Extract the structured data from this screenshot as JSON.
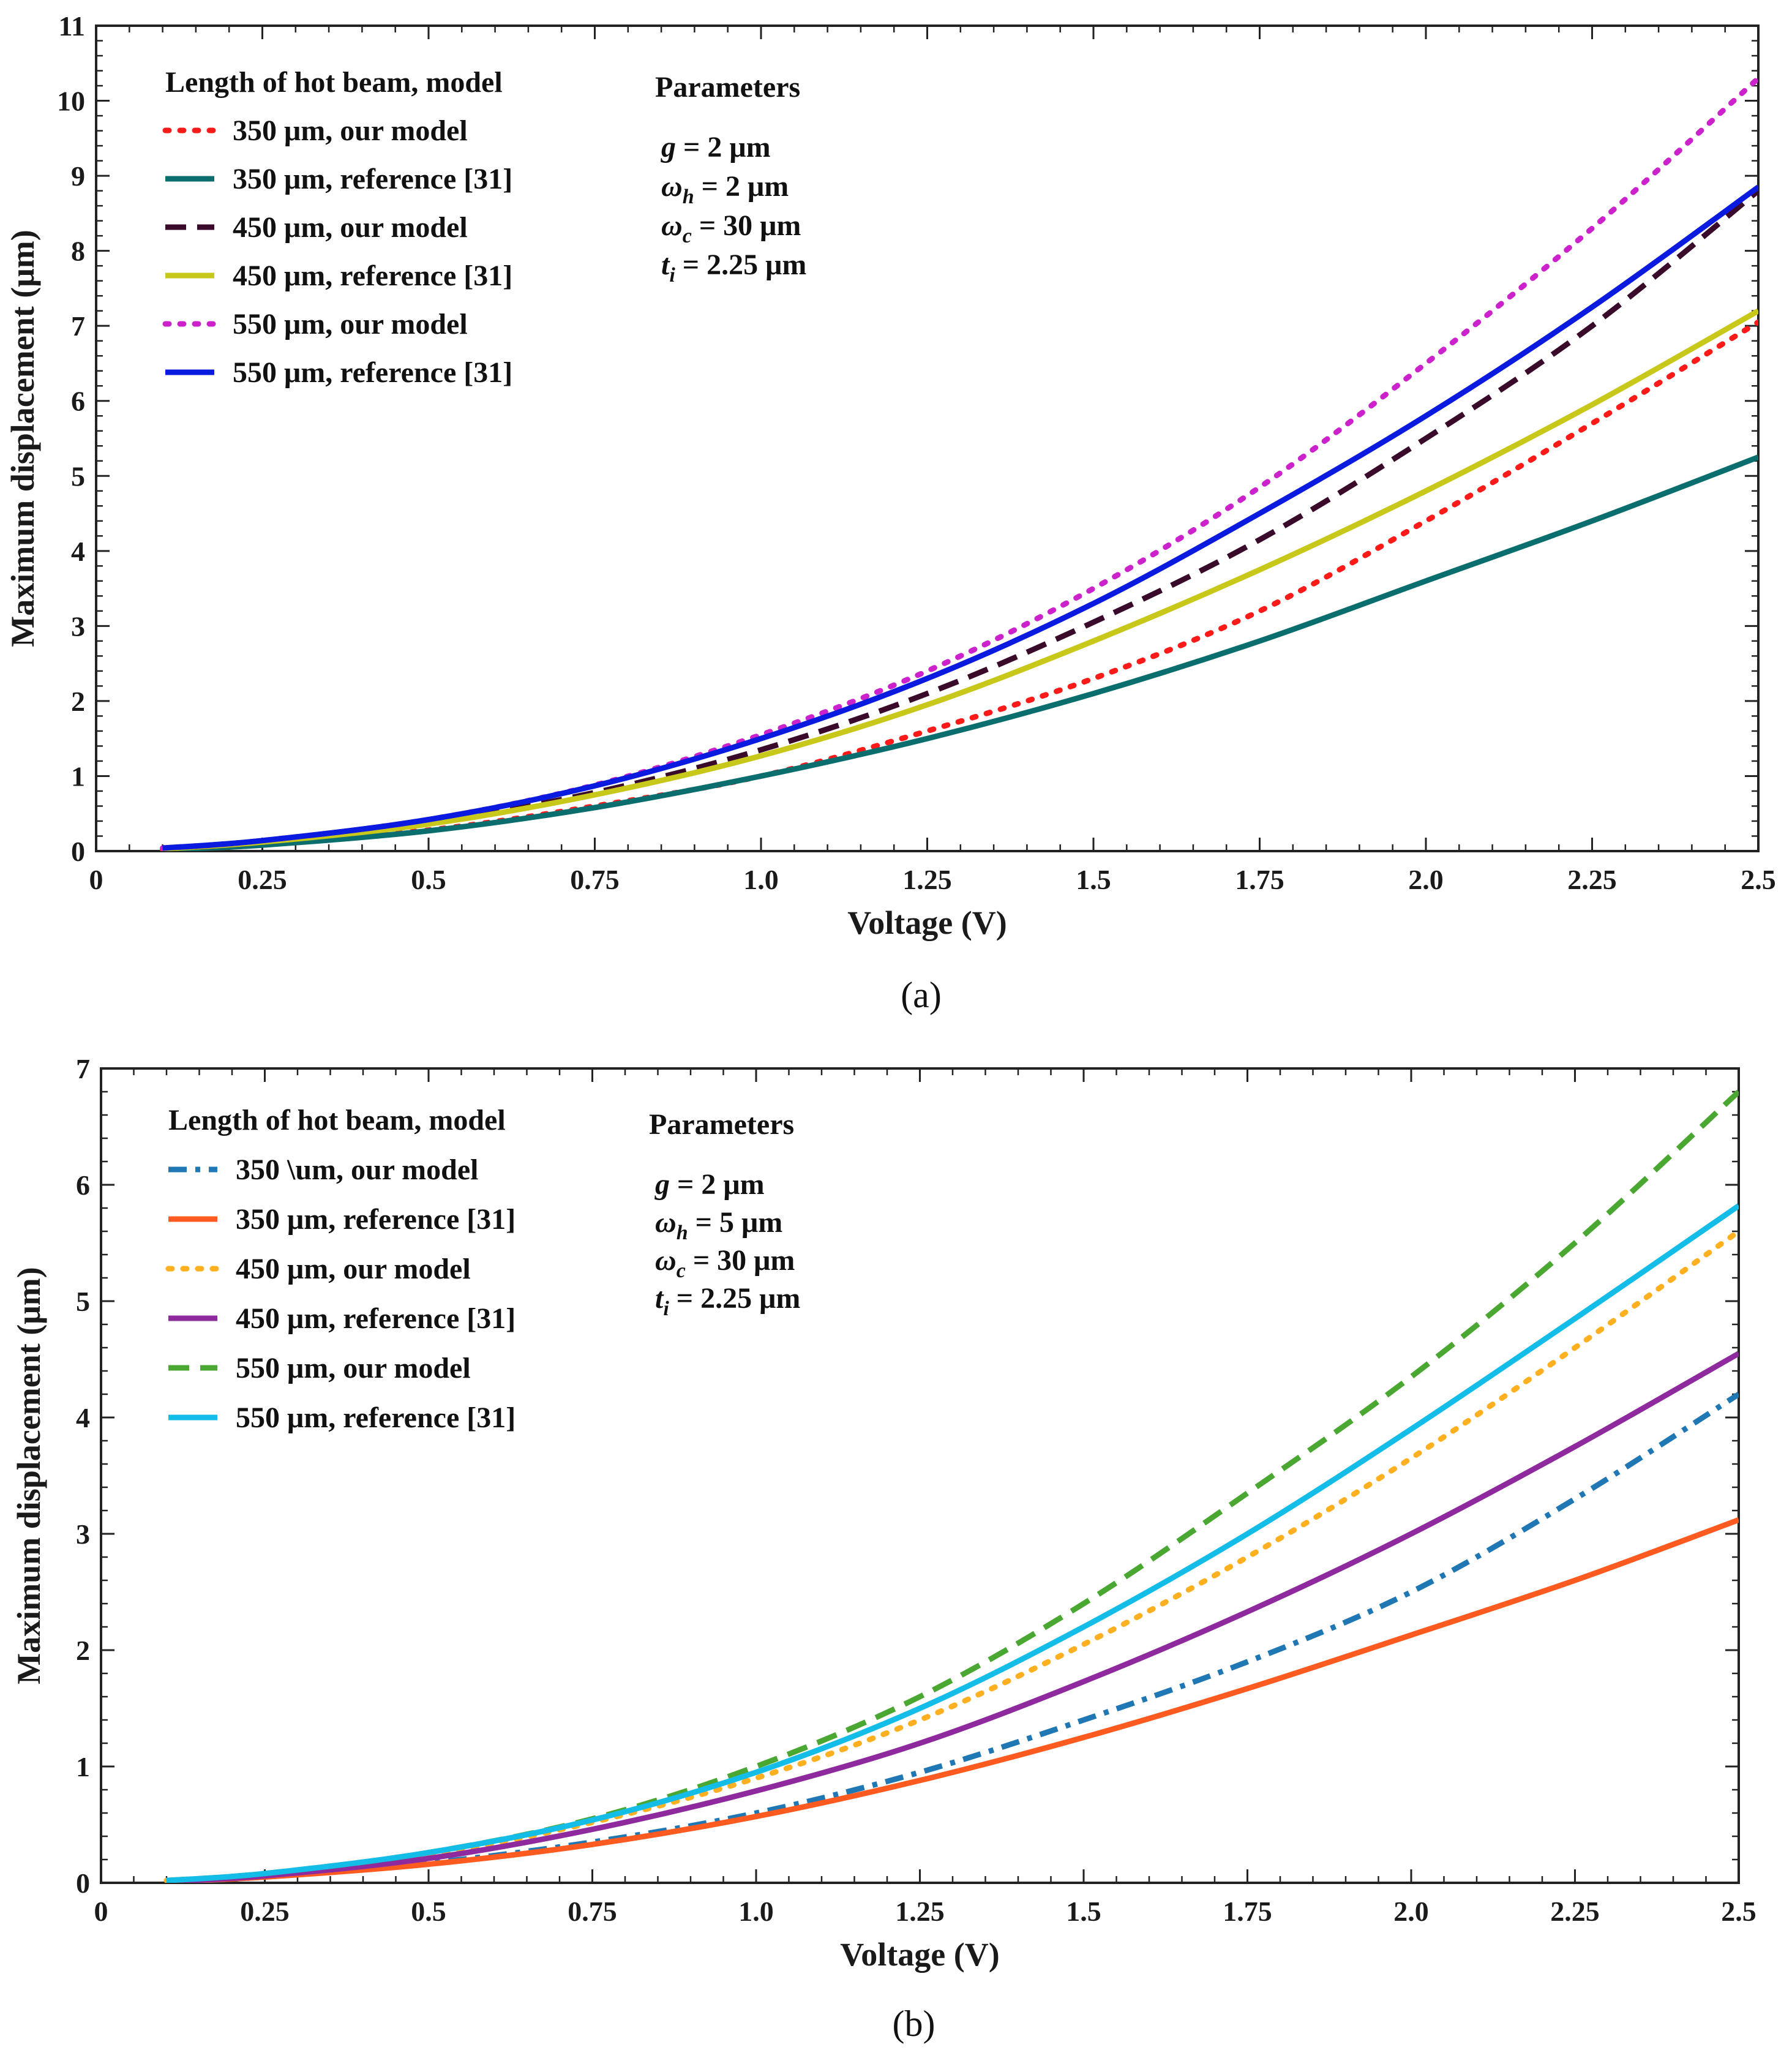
{
  "chart_data": [
    {
      "type": "line",
      "panel_label": "(a)",
      "xlabel": "Voltage (V)",
      "ylabel": "Maximum displacement (μm)",
      "xlim": [
        0,
        2.5
      ],
      "ylim": [
        0,
        11
      ],
      "xticks": [
        "0",
        "0.25",
        "0.5",
        "0.75",
        "1.0",
        "1.25",
        "1.5",
        "1.75",
        "2.0",
        "2.25",
        "2.5"
      ],
      "yticks": [
        "0",
        "1",
        "2",
        "3",
        "4",
        "5",
        "6",
        "7",
        "8",
        "9",
        "10",
        "11"
      ],
      "legend_title": "Length of hot beam, model",
      "legend_placement": "top-left",
      "parameters_title": "Parameters",
      "parameters": [
        {
          "symbol": "g",
          "sub": "",
          "value": " = 2 μm"
        },
        {
          "symbol": "ω",
          "sub": "h",
          "value": " = 2 μm"
        },
        {
          "symbol": "ω",
          "sub": "c",
          "value": " = 30 μm"
        },
        {
          "symbol": "t",
          "sub": "i",
          "value": " = 2.25 μm"
        }
      ],
      "x": [
        0.1,
        0.25,
        0.5,
        0.75,
        1.0,
        1.25,
        1.5,
        1.75,
        2.0,
        2.25,
        2.5
      ],
      "series": [
        {
          "name": "350 μm, our model",
          "color": "#ff1a1a",
          "dash": "dotted",
          "values": [
            0.02,
            0.1,
            0.28,
            0.6,
            1.0,
            1.6,
            2.3,
            3.2,
            4.4,
            5.7,
            7.05
          ]
        },
        {
          "name": "350 μm, reference [31]",
          "color": "#0b6e6e",
          "dash": "solid",
          "values": [
            0.02,
            0.08,
            0.27,
            0.58,
            1.0,
            1.5,
            2.1,
            2.8,
            3.6,
            4.4,
            5.25
          ]
        },
        {
          "name": "450 μm, our model",
          "color": "#3a0a2a",
          "dash": "dashed",
          "values": [
            0.03,
            0.12,
            0.38,
            0.78,
            1.35,
            2.1,
            3.05,
            4.15,
            5.5,
            7.0,
            8.8
          ]
        },
        {
          "name": "450 μm, reference [31]",
          "color": "#c8c81a",
          "dash": "solid",
          "values": [
            0.03,
            0.12,
            0.36,
            0.75,
            1.27,
            1.95,
            2.8,
            3.75,
            4.8,
            5.95,
            7.2
          ]
        },
        {
          "name": "550 μm, our model",
          "color": "#cc22cc",
          "dash": "dotted",
          "values": [
            0.04,
            0.14,
            0.42,
            0.88,
            1.55,
            2.4,
            3.5,
            4.85,
            6.5,
            8.3,
            10.3
          ]
        },
        {
          "name": "550 μm, reference [31]",
          "color": "#0a1adf",
          "dash": "solid",
          "values": [
            0.04,
            0.14,
            0.42,
            0.87,
            1.5,
            2.3,
            3.3,
            4.5,
            5.8,
            7.25,
            8.85
          ]
        }
      ]
    },
    {
      "type": "line",
      "panel_label": "(b)",
      "xlabel": "Voltage (V)",
      "ylabel": "Maximum displacement (μm)",
      "xlim": [
        0,
        2.5
      ],
      "ylim": [
        0,
        7
      ],
      "xticks": [
        "0",
        "0.25",
        "0.5",
        "0.75",
        "1.0",
        "1.25",
        "1.5",
        "1.75",
        "2.0",
        "2.25",
        "2.5"
      ],
      "yticks": [
        "0",
        "1",
        "2",
        "3",
        "4",
        "5",
        "6",
        "7"
      ],
      "legend_title": "Length of hot beam, model",
      "legend_placement": "top-left",
      "parameters_title": "Parameters",
      "parameters": [
        {
          "symbol": "g",
          "sub": "",
          "value": " = 2 μm"
        },
        {
          "symbol": "ω",
          "sub": "h",
          "value": " = 5 μm"
        },
        {
          "symbol": "ω",
          "sub": "c",
          "value": " = 30 μm"
        },
        {
          "symbol": "t",
          "sub": "i",
          "value": " = 2.25 μm"
        }
      ],
      "x": [
        0.1,
        0.25,
        0.5,
        0.75,
        1.0,
        1.25,
        1.5,
        1.75,
        2.0,
        2.25,
        2.5
      ],
      "series": [
        {
          "name": "350 \\um, our model",
          "color": "#1f77b4",
          "dash": "dashdot",
          "values": [
            0.01,
            0.05,
            0.17,
            0.35,
            0.6,
            0.95,
            1.4,
            1.9,
            2.5,
            3.3,
            4.2
          ]
        },
        {
          "name": "350 μm, reference [31]",
          "color": "#ff5a1f",
          "dash": "solid",
          "values": [
            0.01,
            0.05,
            0.16,
            0.33,
            0.57,
            0.88,
            1.25,
            1.67,
            2.13,
            2.6,
            3.12
          ]
        },
        {
          "name": "450 μm, our model",
          "color": "#ffb020",
          "dash": "dotted",
          "values": [
            0.02,
            0.07,
            0.24,
            0.52,
            0.9,
            1.4,
            2.05,
            2.8,
            3.65,
            4.6,
            5.6
          ]
        },
        {
          "name": "450 μm, reference [31]",
          "color": "#8e2a9e",
          "dash": "solid",
          "values": [
            0.01,
            0.06,
            0.21,
            0.46,
            0.79,
            1.2,
            1.73,
            2.33,
            3.0,
            3.75,
            4.55
          ]
        },
        {
          "name": "550 μm, our model",
          "color": "#4aa832",
          "dash": "dashed",
          "values": [
            0.02,
            0.08,
            0.26,
            0.55,
            1.0,
            1.6,
            2.4,
            3.35,
            4.35,
            5.5,
            6.8
          ]
        },
        {
          "name": "550 μm, reference [31]",
          "color": "#14bce8",
          "dash": "solid",
          "values": [
            0.02,
            0.08,
            0.26,
            0.54,
            0.95,
            1.5,
            2.2,
            3.0,
            3.9,
            4.85,
            5.82
          ]
        }
      ]
    }
  ]
}
